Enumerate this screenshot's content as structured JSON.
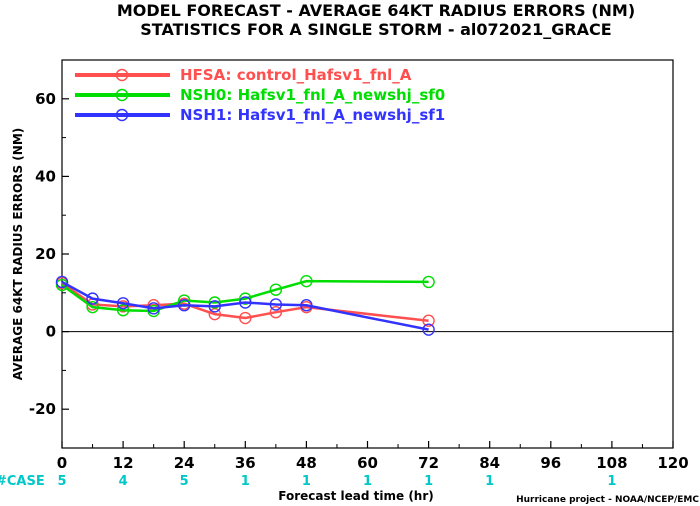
{
  "chart_data": {
    "type": "line",
    "title": "MODEL FORECAST - AVERAGE 64KT RADIUS ERRORS (NM)",
    "subtitle": "STATISTICS FOR A SINGLE STORM - al072021_GRACE",
    "xlabel": "Forecast lead time (hr)",
    "ylabel": "AVERAGE 64KT RADIUS ERRORS (NM)",
    "xlim": [
      0,
      120
    ],
    "ylim": [
      -30,
      70
    ],
    "xticks": [
      0,
      12,
      24,
      36,
      48,
      60,
      72,
      84,
      96,
      108,
      120
    ],
    "xtick_labels": [
      "0",
      "12",
      "24",
      "36",
      "48",
      "60",
      "72",
      "84",
      "96",
      "108",
      "120"
    ],
    "yticks": [
      -20,
      0,
      20,
      40,
      60
    ],
    "ytick_labels": [
      "-20",
      "0",
      "20",
      "40",
      "60"
    ],
    "grid": false,
    "zero_line": true,
    "legend_position": "top-left",
    "series": [
      {
        "name": "HFSA: control_Hafsv1_fnl_A",
        "color": "#ff4f4f",
        "x": [
          0,
          6,
          12,
          18,
          24,
          30,
          36,
          42,
          48,
          72
        ],
        "y": [
          12.5,
          7.0,
          6.5,
          6.8,
          7.2,
          4.5,
          3.5,
          5.0,
          6.3,
          2.8
        ]
      },
      {
        "name": "NSH0: Hafsv1_fnl_A_newshj_sf0",
        "color": "#00dd00",
        "x": [
          0,
          6,
          12,
          18,
          24,
          30,
          36,
          42,
          48,
          72
        ],
        "y": [
          12.0,
          6.3,
          5.5,
          5.3,
          8.0,
          7.5,
          8.5,
          10.8,
          13.0,
          12.8
        ]
      },
      {
        "name": "NSH1: Hafsv1_fnl_A_newshj_sf1",
        "color": "#3333ff",
        "x": [
          0,
          6,
          12,
          18,
          24,
          30,
          36,
          42,
          48,
          72
        ],
        "y": [
          12.8,
          8.5,
          7.3,
          6.0,
          6.8,
          6.5,
          7.5,
          7.0,
          6.8,
          0.5
        ]
      }
    ],
    "cases": {
      "label": "#CASE",
      "color": "#00c8c8",
      "x": [
        0,
        12,
        24,
        36,
        48,
        60,
        72,
        84,
        108
      ],
      "counts": [
        "5",
        "4",
        "5",
        "1",
        "1",
        "1",
        "1",
        "1",
        "1"
      ]
    },
    "credit": "Hurricane project - NOAA/NCEP/EMC"
  }
}
